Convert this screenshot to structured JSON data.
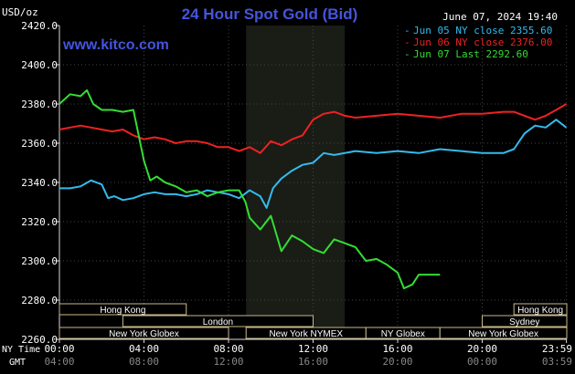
{
  "chart_data": {
    "type": "line",
    "title": "24 Hour Spot Gold (Bid)",
    "watermark": "www.kitco.com",
    "timestamp": "June 07, 2024 19:40",
    "ylabel": "USD/oz",
    "ylim": [
      2260,
      2420
    ],
    "y_ticks": [
      "2420.0",
      "2400.0",
      "2380.0",
      "2360.0",
      "2340.0",
      "2320.0",
      "2300.0",
      "2280.0",
      "2260.0"
    ],
    "xlim": [
      0,
      24
    ],
    "x_tick_values": [
      0,
      4,
      8,
      12,
      16,
      20,
      23.983
    ],
    "x_axis_labels": {
      "ny_time_label": "NY Time",
      "gmt_label": "GMT",
      "ny_time": [
        "00:00",
        "04:00",
        "08:00",
        "12:00",
        "16:00",
        "20:00",
        "23:59"
      ],
      "gmt": [
        "04:00",
        "08:00",
        "12:00",
        "16:00",
        "20:00",
        "00:00",
        "03:59"
      ]
    },
    "highlight_hours": [
      8.83,
      13.5
    ],
    "grid": true,
    "legend_position": "top-right",
    "series": [
      {
        "name": "Jun 05 NY close 2355.60",
        "color": "#33bbee",
        "x": [
          0,
          0.5,
          1,
          1.5,
          2,
          2.3,
          2.6,
          3,
          3.5,
          4,
          4.5,
          5,
          5.5,
          6,
          6.5,
          7,
          7.5,
          8,
          8.5,
          9,
          9.5,
          9.8,
          10.1,
          10.5,
          11,
          11.5,
          12,
          12.5,
          13,
          14,
          15,
          16,
          17,
          18,
          19,
          20,
          21,
          21.5,
          22,
          22.5,
          23,
          23.5,
          23.98
        ],
        "values": [
          2337,
          2337,
          2338,
          2341,
          2339,
          2332,
          2333,
          2331,
          2332,
          2334,
          2335,
          2334,
          2334,
          2333,
          2334,
          2336,
          2335,
          2334,
          2332,
          2336,
          2333,
          2327,
          2337,
          2342,
          2346,
          2349,
          2350,
          2355,
          2354,
          2356,
          2355,
          2356,
          2355,
          2357,
          2356,
          2355,
          2355,
          2357,
          2365,
          2369,
          2368,
          2372,
          2368
        ]
      },
      {
        "name": "Jun 06 NY close 2376.00",
        "color": "#ee2222",
        "x": [
          0,
          0.5,
          1,
          1.5,
          2,
          2.5,
          3,
          3.5,
          4,
          4.5,
          5,
          5.5,
          6,
          6.5,
          7,
          7.5,
          8,
          8.5,
          9,
          9.5,
          10,
          10.5,
          11,
          11.5,
          12,
          12.5,
          13,
          13.5,
          14,
          15,
          16,
          17,
          18,
          19,
          20,
          21,
          21.5,
          22,
          22.5,
          23,
          23.5,
          23.98
        ],
        "values": [
          2367,
          2368,
          2369,
          2368,
          2367,
          2366,
          2367,
          2364,
          2362,
          2363,
          2362,
          2360,
          2361,
          2361,
          2360,
          2358,
          2358,
          2356,
          2358,
          2355,
          2361,
          2359,
          2362,
          2364,
          2372,
          2375,
          2376,
          2374,
          2373,
          2374,
          2375,
          2374,
          2373,
          2375,
          2375,
          2376,
          2376,
          2374,
          2372,
          2374,
          2377,
          2380
        ]
      },
      {
        "name": "Jun 07 Last 2292.60",
        "color": "#33dd33",
        "x": [
          0,
          0.5,
          1,
          1.3,
          1.6,
          2,
          2.5,
          3,
          3.5,
          4,
          4.3,
          4.6,
          5,
          5.5,
          6,
          6.5,
          7,
          7.5,
          8,
          8.5,
          8.8,
          9,
          9.5,
          10,
          10.5,
          11,
          11.5,
          12,
          12.5,
          13,
          13.5,
          14,
          14.5,
          15,
          15.5,
          16,
          16.3,
          16.7,
          17,
          17.3,
          17.6,
          18
        ],
        "values": [
          2380,
          2385,
          2384,
          2387,
          2380,
          2377,
          2377,
          2376,
          2377,
          2351,
          2341,
          2343,
          2340,
          2338,
          2335,
          2336,
          2333,
          2335,
          2336,
          2336,
          2330,
          2322,
          2316,
          2323,
          2305,
          2313,
          2310,
          2306,
          2304,
          2311,
          2309,
          2307,
          2300,
          2301,
          2298,
          2294,
          2286,
          2288,
          2293,
          2293,
          2293,
          2293
        ]
      }
    ],
    "sessions": [
      {
        "label": "Hong Kong",
        "start": 0,
        "end": 6.0
      },
      {
        "label": "London",
        "start": 3.0,
        "end": 12.0
      },
      {
        "label": "New York NYMEX",
        "start": 8.83,
        "end": 14.5
      },
      {
        "label": "New York Globex",
        "start": 0,
        "end": 8.0
      },
      {
        "label": "NY Globex",
        "start": 14.5,
        "end": 18.0
      },
      {
        "label": "Hong Kong",
        "start": 21.5,
        "end": 24.0
      },
      {
        "label": "Sydney",
        "start": 20.0,
        "end": 24.0
      },
      {
        "label": "New York Globex",
        "start": 18.0,
        "end": 24.0
      }
    ]
  }
}
